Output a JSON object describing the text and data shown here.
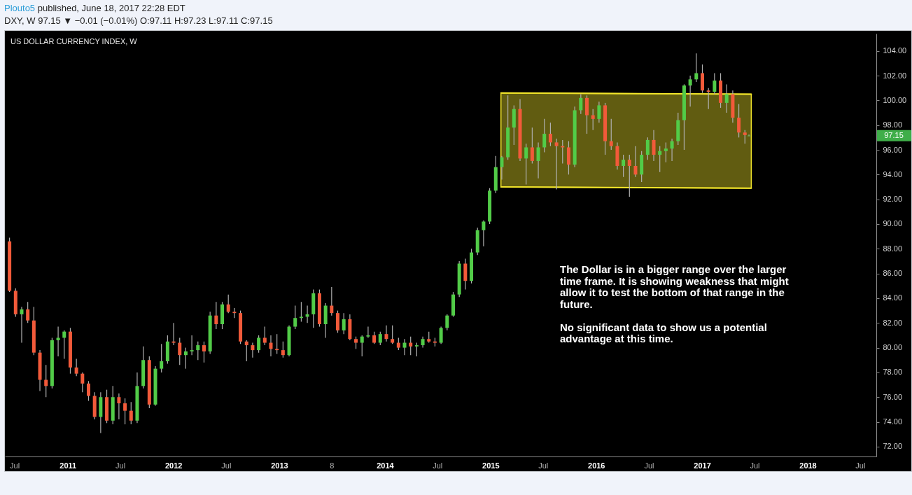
{
  "chart_data": {
    "type": "candlestick",
    "title": "US DOLLAR CURRENCY INDEX, W",
    "subtitle": "DXY, W 97.15 ▼ −0.01 (−0.01%) O:97.11 H:97.23 L:97.11 C:97.15",
    "annotations": [
      "Plouto5 published, June 18, 2017 22:28 EDT",
      "The Dollar is in a bigger range over the larger time frame. It is showing weakness that might allow it to test the bottom of that range in the future.",
      "No significant data to show us a potential advantage at this time.",
      "97.15"
    ],
    "x": [
      "2010-06-14",
      "2010-07-05",
      "2010-07-26",
      "2010-08-16",
      "2010-09-06",
      "2010-09-27",
      "2010-10-18",
      "2010-11-08",
      "2010-11-29",
      "2010-12-20",
      "2011-01-10",
      "2011-01-31",
      "2011-02-21",
      "2011-03-14",
      "2011-04-04",
      "2011-04-25",
      "2011-05-16",
      "2011-06-06",
      "2011-06-27",
      "2011-07-18",
      "2011-08-08",
      "2011-08-29",
      "2011-09-19",
      "2011-10-10",
      "2011-10-31",
      "2011-11-21",
      "2011-12-12",
      "2012-01-02",
      "2012-01-23",
      "2012-02-13",
      "2012-03-05",
      "2012-03-26",
      "2012-04-16",
      "2012-05-07",
      "2012-05-28",
      "2012-06-18",
      "2012-07-09",
      "2012-07-30",
      "2012-08-20",
      "2012-09-10",
      "2012-10-01",
      "2012-10-22",
      "2012-11-12",
      "2012-12-03",
      "2012-12-24",
      "2013-01-14",
      "2013-02-04",
      "2013-02-25",
      "2013-03-18",
      "2013-04-08",
      "2013-04-29",
      "2013-05-20",
      "2013-06-10",
      "2013-07-01",
      "2013-07-22",
      "2013-08-12",
      "2013-09-02",
      "2013-09-23",
      "2013-10-14",
      "2013-11-04",
      "2013-11-25",
      "2013-12-16",
      "2014-01-06",
      "2014-01-27",
      "2014-02-17",
      "2014-03-10",
      "2014-03-31",
      "2014-04-21",
      "2014-05-12",
      "2014-06-02",
      "2014-06-23",
      "2014-07-14",
      "2014-08-04",
      "2014-08-25",
      "2014-09-15",
      "2014-10-06",
      "2014-10-27",
      "2014-11-17",
      "2014-12-08",
      "2014-12-29",
      "2015-01-19",
      "2015-02-09",
      "2015-03-02",
      "2015-03-23",
      "2015-04-13",
      "2015-05-04",
      "2015-05-25",
      "2015-06-15",
      "2015-07-06",
      "2015-07-27",
      "2015-08-17",
      "2015-09-07",
      "2015-09-28",
      "2015-10-19",
      "2015-11-09",
      "2015-11-30",
      "2015-12-21",
      "2016-01-11",
      "2016-02-01",
      "2016-02-22",
      "2016-03-14",
      "2016-04-04",
      "2016-04-25",
      "2016-05-16",
      "2016-06-06",
      "2016-06-27",
      "2016-07-18",
      "2016-08-08",
      "2016-08-29",
      "2016-09-19",
      "2016-10-10",
      "2016-10-31",
      "2016-11-21",
      "2016-12-12",
      "2017-01-02",
      "2017-01-23",
      "2017-02-13",
      "2017-03-06",
      "2017-03-27",
      "2017-04-17",
      "2017-05-08",
      "2017-05-29",
      "2017-06-12"
    ],
    "ohlc": [
      [
        88.6,
        88.9,
        84.5,
        84.6
      ],
      [
        84.6,
        84.8,
        82.5,
        82.7
      ],
      [
        82.7,
        83.3,
        80.4,
        83.1
      ],
      [
        83.1,
        83.7,
        82.0,
        82.2
      ],
      [
        82.2,
        83.3,
        79.4,
        79.6
      ],
      [
        79.6,
        79.8,
        76.5,
        77.4
      ],
      [
        77.4,
        78.6,
        76.0,
        76.9
      ],
      [
        76.9,
        80.8,
        76.7,
        80.6
      ],
      [
        80.6,
        81.7,
        79.3,
        80.8
      ],
      [
        80.8,
        81.4,
        79.1,
        81.3
      ],
      [
        81.3,
        81.6,
        77.9,
        78.4
      ],
      [
        78.4,
        79.1,
        77.7,
        77.9
      ],
      [
        77.9,
        78.0,
        76.4,
        77.1
      ],
      [
        77.1,
        77.3,
        75.7,
        76.1
      ],
      [
        76.1,
        76.4,
        74.2,
        74.4
      ],
      [
        74.4,
        76.4,
        73.1,
        76.0
      ],
      [
        76.0,
        76.6,
        73.9,
        74.1
      ],
      [
        74.1,
        76.9,
        73.8,
        76.0
      ],
      [
        76.0,
        76.3,
        74.2,
        75.5
      ],
      [
        75.5,
        75.9,
        73.8,
        74.9
      ],
      [
        74.9,
        75.6,
        73.8,
        74.1
      ],
      [
        74.1,
        78.0,
        73.9,
        76.9
      ],
      [
        76.9,
        80.1,
        76.7,
        79.0
      ],
      [
        79.0,
        79.3,
        75.1,
        75.4
      ],
      [
        75.4,
        78.5,
        75.3,
        78.3
      ],
      [
        78.3,
        80.3,
        78.0,
        78.9
      ],
      [
        78.9,
        81.0,
        78.7,
        80.5
      ],
      [
        80.5,
        82.0,
        80.2,
        80.4
      ],
      [
        80.4,
        80.8,
        78.6,
        79.4
      ],
      [
        79.4,
        80.0,
        78.3,
        79.7
      ],
      [
        79.7,
        81.0,
        79.4,
        79.8
      ],
      [
        79.8,
        80.5,
        79.0,
        80.2
      ],
      [
        80.2,
        80.5,
        78.8,
        79.7
      ],
      [
        79.7,
        82.9,
        79.5,
        82.6
      ],
      [
        82.6,
        83.7,
        81.5,
        81.9
      ],
      [
        81.9,
        83.7,
        81.5,
        83.5
      ],
      [
        83.5,
        84.3,
        82.8,
        82.9
      ],
      [
        82.9,
        83.2,
        82.4,
        82.8
      ],
      [
        82.8,
        83.0,
        80.3,
        80.5
      ],
      [
        80.5,
        80.6,
        78.9,
        80.2
      ],
      [
        80.2,
        80.4,
        79.2,
        79.8
      ],
      [
        79.8,
        81.0,
        79.6,
        80.8
      ],
      [
        80.8,
        81.7,
        80.2,
        80.4
      ],
      [
        80.4,
        81.0,
        79.3,
        79.9
      ],
      [
        79.9,
        81.1,
        79.5,
        79.8
      ],
      [
        79.8,
        80.5,
        79.2,
        79.4
      ],
      [
        79.4,
        81.8,
        79.3,
        81.7
      ],
      [
        81.7,
        83.4,
        81.5,
        82.4
      ],
      [
        82.4,
        83.7,
        82.1,
        82.5
      ],
      [
        82.5,
        83.4,
        82.0,
        82.7
      ],
      [
        82.7,
        84.7,
        81.6,
        84.4
      ],
      [
        84.4,
        84.7,
        81.7,
        81.9
      ],
      [
        81.9,
        83.6,
        80.8,
        83.4
      ],
      [
        83.4,
        84.9,
        82.6,
        82.8
      ],
      [
        82.8,
        83.0,
        81.2,
        81.4
      ],
      [
        81.4,
        82.8,
        81.1,
        82.3
      ],
      [
        82.3,
        82.7,
        80.6,
        80.7
      ],
      [
        80.7,
        80.9,
        79.9,
        80.4
      ],
      [
        80.4,
        81.0,
        79.3,
        80.9
      ],
      [
        80.9,
        81.7,
        80.8,
        81.0
      ],
      [
        81.0,
        81.3,
        80.3,
        80.4
      ],
      [
        80.4,
        81.3,
        80.2,
        81.1
      ],
      [
        81.1,
        81.8,
        80.5,
        80.7
      ],
      [
        80.7,
        81.8,
        80.3,
        80.4
      ],
      [
        80.4,
        80.8,
        79.8,
        80.0
      ],
      [
        80.0,
        80.7,
        79.4,
        80.4
      ],
      [
        80.4,
        80.9,
        79.4,
        80.1
      ],
      [
        80.1,
        80.4,
        79.3,
        80.2
      ],
      [
        80.2,
        80.9,
        80.0,
        80.7
      ],
      [
        80.7,
        81.3,
        80.4,
        80.5
      ],
      [
        80.5,
        80.8,
        80.1,
        80.4
      ],
      [
        80.4,
        81.7,
        80.3,
        81.6
      ],
      [
        81.6,
        82.7,
        81.4,
        82.6
      ],
      [
        82.6,
        84.5,
        82.5,
        84.3
      ],
      [
        84.3,
        87.0,
        84.1,
        86.8
      ],
      [
        86.8,
        87.2,
        84.7,
        85.4
      ],
      [
        85.4,
        88.0,
        85.2,
        87.7
      ],
      [
        87.7,
        89.7,
        87.5,
        89.5
      ],
      [
        89.5,
        90.3,
        88.2,
        90.2
      ],
      [
        90.2,
        92.9,
        90.0,
        92.7
      ],
      [
        92.7,
        95.5,
        92.5,
        94.6
      ],
      [
        94.6,
        95.5,
        93.6,
        95.4
      ],
      [
        95.4,
        100.4,
        95.2,
        97.8
      ],
      [
        97.8,
        99.6,
        96.4,
        99.3
      ],
      [
        99.3,
        100.1,
        95.1,
        95.3
      ],
      [
        95.3,
        96.5,
        93.2,
        96.2
      ],
      [
        96.2,
        97.8,
        94.9,
        95.1
      ],
      [
        95.1,
        96.6,
        93.7,
        96.2
      ],
      [
        96.2,
        98.5,
        95.8,
        97.3
      ],
      [
        97.3,
        98.2,
        96.3,
        96.6
      ],
      [
        96.6,
        96.9,
        92.8,
        96.3
      ],
      [
        96.3,
        96.8,
        94.9,
        96.2
      ],
      [
        96.2,
        96.7,
        94.0,
        94.8
      ],
      [
        94.8,
        99.5,
        94.6,
        99.2
      ],
      [
        99.2,
        100.5,
        98.9,
        100.2
      ],
      [
        100.2,
        100.4,
        97.3,
        98.8
      ],
      [
        98.8,
        99.3,
        97.6,
        98.5
      ],
      [
        98.5,
        99.9,
        98.2,
        99.6
      ],
      [
        99.6,
        99.8,
        95.6,
        96.7
      ],
      [
        96.7,
        98.5,
        96.0,
        96.3
      ],
      [
        96.3,
        96.6,
        94.4,
        94.7
      ],
      [
        94.7,
        95.6,
        93.8,
        95.2
      ],
      [
        95.2,
        95.6,
        92.2,
        94.7
      ],
      [
        94.7,
        96.3,
        93.8,
        94.0
      ],
      [
        94.0,
        95.9,
        93.4,
        95.6
      ],
      [
        95.6,
        97.0,
        95.2,
        96.8
      ],
      [
        96.8,
        97.6,
        95.1,
        95.6
      ],
      [
        95.6,
        96.3,
        94.2,
        95.9
      ],
      [
        95.9,
        96.6,
        95.0,
        96.1
      ],
      [
        96.1,
        96.9,
        95.1,
        96.7
      ],
      [
        96.7,
        99.0,
        96.4,
        98.4
      ],
      [
        98.4,
        101.3,
        96.0,
        101.2
      ],
      [
        101.2,
        102.0,
        99.5,
        101.7
      ],
      [
        101.7,
        103.8,
        101.5,
        102.2
      ],
      [
        102.2,
        102.9,
        100.6,
        100.8
      ],
      [
        100.8,
        101.0,
        99.3,
        100.7
      ],
      [
        100.7,
        102.2,
        100.5,
        101.6
      ],
      [
        101.6,
        102.2,
        99.4,
        99.8
      ],
      [
        99.8,
        101.3,
        99.0,
        100.5
      ],
      [
        100.5,
        100.8,
        98.2,
        98.6
      ],
      [
        98.6,
        99.7,
        97.0,
        97.4
      ],
      [
        97.4,
        97.6,
        96.5,
        97.2
      ],
      [
        97.11,
        97.23,
        97.11,
        97.15
      ]
    ],
    "colors": [
      "#f25a3a",
      "#f25a3a",
      "#52cc48",
      "#f25a3a",
      "#f25a3a",
      "#f25a3a",
      "#f25a3a",
      "#52cc48",
      "#52cc48",
      "#52cc48",
      "#f25a3a",
      "#f25a3a",
      "#f25a3a",
      "#f25a3a",
      "#f25a3a",
      "#52cc48",
      "#f25a3a",
      "#52cc48",
      "#f25a3a",
      "#f25a3a",
      "#f25a3a",
      "#52cc48",
      "#52cc48",
      "#f25a3a",
      "#52cc48",
      "#52cc48",
      "#52cc48",
      "#f25a3a",
      "#f25a3a",
      "#52cc48",
      "#52cc48",
      "#52cc48",
      "#f25a3a",
      "#52cc48",
      "#f25a3a",
      "#52cc48",
      "#f25a3a",
      "#f25a3a",
      "#f25a3a",
      "#f25a3a",
      "#f25a3a",
      "#52cc48",
      "#f25a3a",
      "#f25a3a",
      "#f25a3a",
      "#f25a3a",
      "#52cc48",
      "#52cc48",
      "#52cc48",
      "#52cc48",
      "#52cc48",
      "#f25a3a",
      "#52cc48",
      "#f25a3a",
      "#f25a3a",
      "#52cc48",
      "#f25a3a",
      "#f25a3a",
      "#52cc48",
      "#52cc48",
      "#f25a3a",
      "#52cc48",
      "#f25a3a",
      "#f25a3a",
      "#f25a3a",
      "#52cc48",
      "#f25a3a",
      "#52cc48",
      "#52cc48",
      "#f25a3a",
      "#f25a3a",
      "#52cc48",
      "#52cc48",
      "#52cc48",
      "#52cc48",
      "#f25a3a",
      "#52cc48",
      "#52cc48",
      "#52cc48",
      "#52cc48",
      "#52cc48",
      "#52cc48",
      "#52cc48",
      "#52cc48",
      "#f25a3a",
      "#52cc48",
      "#f25a3a",
      "#52cc48",
      "#52cc48",
      "#f25a3a",
      "#f25a3a",
      "#f25a3a",
      "#f25a3a",
      "#52cc48",
      "#52cc48",
      "#f25a3a",
      "#f25a3a",
      "#52cc48",
      "#f25a3a",
      "#f25a3a",
      "#f25a3a",
      "#52cc48",
      "#f25a3a",
      "#f25a3a",
      "#52cc48",
      "#52cc48",
      "#f25a3a",
      "#52cc48",
      "#52cc48",
      "#52cc48",
      "#52cc48",
      "#52cc48",
      "#52cc48",
      "#52cc48",
      "#f25a3a",
      "#f25a3a",
      "#52cc48",
      "#f25a3a",
      "#52cc48",
      "#f25a3a",
      "#f25a3a",
      "#f25a3a",
      "#52cc48"
    ],
    "series": [
      {
        "type": "line",
        "color": "#f2e52a",
        "x": [
          "2015-02-06",
          "2017-06-20"
        ],
        "values": [
          100.6,
          100.5
        ],
        "lower": [
          93.0,
          92.9
        ],
        "upper": [
          100.6,
          100.5
        ]
      },
      {
        "type": "line",
        "color": "#f2e52a",
        "x": [
          "2015-02-06",
          "2017-06-20"
        ],
        "values": [
          93.0,
          92.9
        ]
      }
    ],
    "xlim": [
      "2010-05-29",
      "2018-08-26"
    ],
    "xticks": [
      {
        "value": "2010-07-01",
        "label": "Jul"
      },
      {
        "value": "2011-01-01",
        "label": "2011"
      },
      {
        "value": "2011-07-01",
        "label": "Jul"
      },
      {
        "value": "2012-01-01",
        "label": "2012"
      },
      {
        "value": "2012-07-01",
        "label": "Jul"
      },
      {
        "value": "2013-01-01",
        "label": "2013"
      },
      {
        "value": "2013-07-01",
        "label": "8"
      },
      {
        "value": "2014-01-01",
        "label": "2014"
      },
      {
        "value": "2014-07-01",
        "label": "Jul"
      },
      {
        "value": "2015-01-01",
        "label": "2015"
      },
      {
        "value": "2015-07-01",
        "label": "Jul"
      },
      {
        "value": "2016-01-01",
        "label": "2016"
      },
      {
        "value": "2016-07-01",
        "label": "Jul"
      },
      {
        "value": "2017-01-01",
        "label": "2017"
      },
      {
        "value": "2017-07-01",
        "label": "Jul"
      },
      {
        "value": "2018-01-01",
        "label": "2018"
      },
      {
        "value": "2018-07-01",
        "label": "Jul"
      }
    ],
    "ylim": [
      71.2,
      105.4
    ],
    "yticks": [
      {
        "value": 72,
        "label": "72.00"
      },
      {
        "value": 74,
        "label": "74.00"
      },
      {
        "value": 76,
        "label": "76.00"
      },
      {
        "value": 78,
        "label": "78.00"
      },
      {
        "value": 80,
        "label": "80.00"
      },
      {
        "value": 82,
        "label": "82.00"
      },
      {
        "value": 84,
        "label": "84.00"
      },
      {
        "value": 86,
        "label": "86.00"
      },
      {
        "value": 88,
        "label": "88.00"
      },
      {
        "value": 90,
        "label": "90.00"
      },
      {
        "value": 92,
        "label": "92.00"
      },
      {
        "value": 94,
        "label": "94.00"
      },
      {
        "value": 96,
        "label": "96.00"
      },
      {
        "value": 98,
        "label": "98.00"
      },
      {
        "value": 100,
        "label": "100.00"
      },
      {
        "value": 102,
        "label": "102.00"
      },
      {
        "value": 104,
        "label": "104.00"
      }
    ]
  }
}
